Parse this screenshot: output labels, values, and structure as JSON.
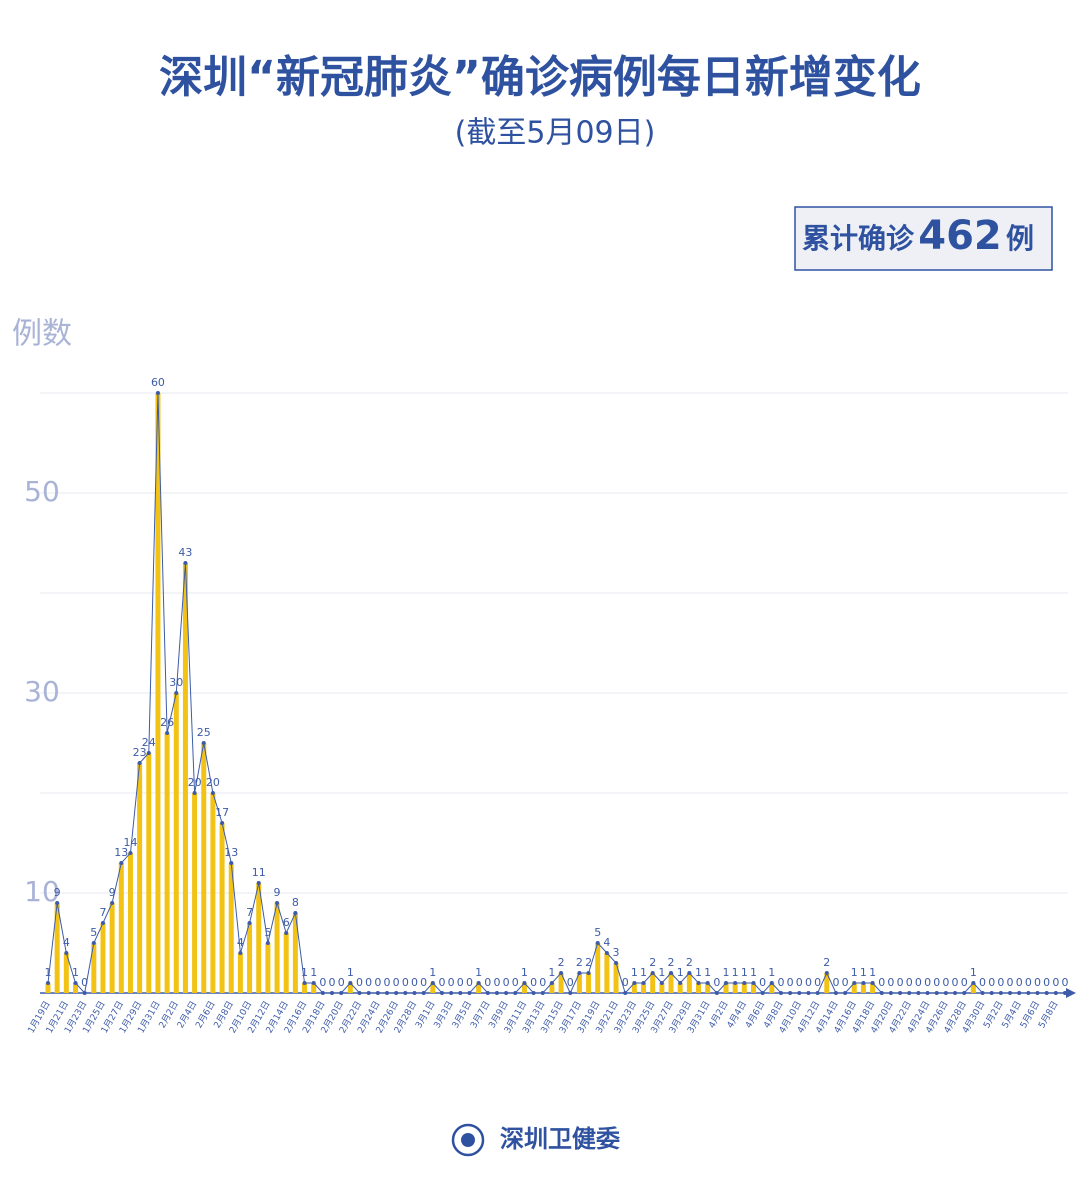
{
  "chart_data": {
    "type": "line",
    "title": "深圳“新冠肺炎”确诊病例每日新增变化",
    "subtitle": "(截至5月09日)",
    "total_label": "累计确诊",
    "total_value": "462",
    "total_unit": "例",
    "y_label": "例数",
    "source": "深圳卫健委",
    "categories": [
      "1月19日",
      null,
      "1月21日",
      null,
      "1月23日",
      null,
      "1月25日",
      null,
      "1月27日",
      null,
      "1月29日",
      null,
      "1月31日",
      null,
      "2月2日",
      null,
      "2月4日",
      null,
      "2月6日",
      null,
      "2月8日",
      null,
      "2月10日",
      null,
      "2月12日",
      null,
      "2月14日",
      null,
      "2月16日",
      null,
      "2月18日",
      null,
      "2月20日",
      null,
      "2月22日",
      null,
      "2月24日",
      null,
      "2月26日",
      null,
      "2月28日",
      null,
      "3月1日",
      null,
      "3月3日",
      null,
      "3月5日",
      null,
      "3月7日",
      null,
      "3月9日",
      null,
      "3月11日",
      null,
      "3月13日",
      null,
      "3月15日",
      null,
      "3月17日",
      null,
      "3月19日",
      null,
      "3月21日",
      null,
      "3月23日",
      null,
      "3月25日",
      null,
      "3月27日",
      null,
      "3月29日",
      null,
      "3月31日",
      null,
      "4月2日",
      null,
      "4月4日",
      null,
      "4月6日",
      null,
      "4月8日",
      null,
      "4月10日",
      null,
      "4月12日",
      null,
      "4月14日",
      null,
      "4月16日",
      null,
      "4月18日",
      null,
      "4月20日",
      null,
      "4月22日",
      null,
      "4月24日",
      null,
      "4月26日",
      null,
      "4月28日",
      null,
      "4月30日",
      null,
      "5月2日",
      null,
      "5月4日",
      null,
      "5月6日",
      null,
      "5月8日",
      null
    ],
    "values": [
      1,
      9,
      4,
      1,
      0,
      5,
      7,
      9,
      13,
      14,
      23,
      24,
      60,
      26,
      30,
      43,
      20,
      25,
      20,
      17,
      13,
      4,
      7,
      11,
      5,
      9,
      6,
      8,
      1,
      1,
      0,
      0,
      0,
      1,
      0,
      0,
      0,
      0,
      0,
      0,
      0,
      0,
      1,
      0,
      0,
      0,
      0,
      1,
      0,
      0,
      0,
      0,
      1,
      0,
      0,
      1,
      2,
      0,
      2,
      2,
      5,
      4,
      3,
      0,
      1,
      1,
      2,
      1,
      2,
      1,
      2,
      1,
      1,
      0,
      1,
      1,
      1,
      1,
      0,
      1,
      0,
      0,
      0,
      0,
      0,
      2,
      0,
      0,
      1,
      1,
      1,
      0,
      0,
      0,
      0,
      0,
      0,
      0,
      0,
      0,
      0,
      1,
      0,
      0,
      0,
      0,
      0,
      0,
      0,
      0,
      0,
      0
    ],
    "line_color": "#3d5ba8",
    "fill_color": "#f2c314",
    "ylim": [
      0,
      60
    ],
    "yticks": [
      10,
      30,
      50
    ],
    "minor_yticks": [
      20,
      40,
      60
    ],
    "grid": true
  }
}
